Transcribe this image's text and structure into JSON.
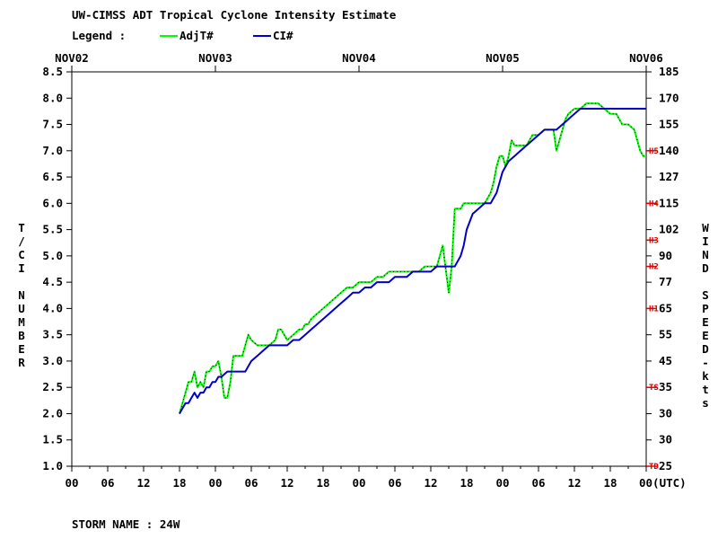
{
  "chart_data": {
    "type": "line",
    "title": "UW-CIMSS ADT Tropical Cyclone Intensity Estimate",
    "legend_label": "Legend :",
    "legend_placement": "top-left",
    "footer": "STORM NAME : 24W",
    "xlabel_suffix": "00(UTC)",
    "ylabel_left": "T/CI NUMBER",
    "ylabel_right": "WIND SPEED-kts",
    "x_unit": "hours since NOV02 00 UTC",
    "xlim": [
      0,
      96
    ],
    "ylim": [
      1.0,
      8.5
    ],
    "grid": false,
    "date_labels": [
      {
        "x": 0,
        "label": "NOV02"
      },
      {
        "x": 24,
        "label": "NOV03"
      },
      {
        "x": 48,
        "label": "NOV04"
      },
      {
        "x": 72,
        "label": "NOV05"
      },
      {
        "x": 96,
        "label": "NOV06"
      }
    ],
    "x_ticks": [
      {
        "x": 0,
        "label": "00"
      },
      {
        "x": 6,
        "label": "06"
      },
      {
        "x": 12,
        "label": "12"
      },
      {
        "x": 18,
        "label": "18"
      },
      {
        "x": 24,
        "label": "00"
      },
      {
        "x": 30,
        "label": "06"
      },
      {
        "x": 36,
        "label": "12"
      },
      {
        "x": 42,
        "label": "18"
      },
      {
        "x": 48,
        "label": "00"
      },
      {
        "x": 54,
        "label": "06"
      },
      {
        "x": 60,
        "label": "12"
      },
      {
        "x": 66,
        "label": "18"
      },
      {
        "x": 72,
        "label": "00"
      },
      {
        "x": 78,
        "label": "06"
      },
      {
        "x": 84,
        "label": "12"
      },
      {
        "x": 90,
        "label": "18"
      }
    ],
    "y_ticks_left": [
      "1.0",
      "1.5",
      "2.0",
      "2.5",
      "3.0",
      "3.5",
      "4.0",
      "4.5",
      "5.0",
      "5.5",
      "6.0",
      "6.5",
      "7.0",
      "7.5",
      "8.0",
      "8.5"
    ],
    "y_ticks_right": [
      {
        "t": 1.0,
        "label": "25"
      },
      {
        "t": 1.5,
        "label": "30"
      },
      {
        "t": 2.0,
        "label": "30"
      },
      {
        "t": 2.5,
        "label": "35"
      },
      {
        "t": 3.0,
        "label": "45"
      },
      {
        "t": 3.5,
        "label": "55"
      },
      {
        "t": 4.0,
        "label": "65"
      },
      {
        "t": 4.5,
        "label": "77"
      },
      {
        "t": 5.0,
        "label": "90"
      },
      {
        "t": 5.5,
        "label": "102"
      },
      {
        "t": 6.0,
        "label": "115"
      },
      {
        "t": 6.5,
        "label": "127"
      },
      {
        "t": 7.0,
        "label": "140"
      },
      {
        "t": 7.5,
        "label": "155"
      },
      {
        "t": 8.0,
        "label": "170"
      },
      {
        "t": 8.5,
        "label": "185"
      }
    ],
    "category_marks": [
      {
        "t": 1.0,
        "label": "TD"
      },
      {
        "t": 2.5,
        "label": "TS"
      },
      {
        "t": 4.0,
        "label": "H1"
      },
      {
        "t": 4.8,
        "label": "H2"
      },
      {
        "t": 5.3,
        "label": "H3"
      },
      {
        "t": 6.0,
        "label": "H4"
      },
      {
        "t": 7.0,
        "label": "H5"
      }
    ],
    "series": [
      {
        "name": "AdjT#",
        "color": "#00ff00",
        "x": [
          18,
          18.5,
          19,
          19.5,
          20,
          20.5,
          21,
          21.5,
          22,
          22.5,
          23,
          23.5,
          24,
          24.5,
          25,
          25.5,
          26,
          26.5,
          27,
          27.5,
          28,
          28.5,
          29,
          29.5,
          30,
          31,
          32,
          33,
          34,
          34.5,
          35,
          35.5,
          36,
          37,
          38,
          38.5,
          39,
          39.5,
          40,
          41,
          42,
          43,
          44,
          45,
          46,
          47,
          48,
          49,
          50,
          51,
          52,
          53,
          54,
          55,
          56,
          57,
          58,
          59,
          60,
          61,
          62,
          63,
          63.5,
          64,
          64.5,
          65,
          65.5,
          66,
          67,
          68,
          69,
          70,
          70.5,
          71,
          71.5,
          72,
          72.5,
          73,
          73.5,
          74,
          75,
          76,
          77,
          78,
          79,
          79.5,
          80,
          80.5,
          81,
          82,
          82.5,
          83,
          84,
          85,
          86,
          87,
          88,
          89,
          90,
          91,
          92,
          93,
          94,
          95,
          95.5,
          96
        ],
        "y": [
          2.0,
          2.2,
          2.4,
          2.6,
          2.6,
          2.8,
          2.5,
          2.6,
          2.5,
          2.8,
          2.8,
          2.9,
          2.9,
          3.0,
          2.7,
          2.3,
          2.3,
          2.6,
          3.1,
          3.1,
          3.1,
          3.1,
          3.3,
          3.5,
          3.4,
          3.3,
          3.3,
          3.3,
          3.4,
          3.6,
          3.6,
          3.5,
          3.4,
          3.5,
          3.6,
          3.6,
          3.7,
          3.7,
          3.8,
          3.9,
          4.0,
          4.1,
          4.2,
          4.3,
          4.4,
          4.4,
          4.5,
          4.5,
          4.5,
          4.6,
          4.6,
          4.7,
          4.7,
          4.7,
          4.7,
          4.7,
          4.7,
          4.8,
          4.8,
          4.8,
          5.2,
          4.3,
          4.8,
          5.9,
          5.9,
          5.9,
          6.0,
          6.0,
          6.0,
          6.0,
          6.0,
          6.2,
          6.4,
          6.7,
          6.9,
          6.9,
          6.7,
          6.9,
          7.2,
          7.1,
          7.1,
          7.1,
          7.3,
          7.3,
          7.4,
          7.4,
          7.4,
          7.4,
          7.0,
          7.4,
          7.6,
          7.7,
          7.8,
          7.8,
          7.9,
          7.9,
          7.9,
          7.8,
          7.7,
          7.7,
          7.5,
          7.5,
          7.4,
          7.0,
          6.9,
          6.9
        ]
      },
      {
        "name": "CI#",
        "color": "#0000cc",
        "x": [
          18,
          18.5,
          19,
          19.5,
          20,
          20.5,
          21,
          21.5,
          22,
          22.5,
          23,
          23.5,
          24,
          24.5,
          25,
          26,
          27,
          28,
          29,
          30,
          31,
          32,
          33,
          34,
          35,
          36,
          37,
          38,
          39,
          40,
          41,
          42,
          43,
          44,
          45,
          46,
          47,
          48,
          49,
          50,
          51,
          52,
          53,
          54,
          55,
          56,
          57,
          58,
          59,
          60,
          61,
          62,
          63,
          64,
          64.5,
          65,
          65.5,
          66,
          67,
          68,
          69,
          70,
          71,
          72,
          73,
          74,
          75,
          76,
          77,
          78,
          79,
          80,
          81,
          82,
          83,
          84,
          85,
          86,
          87,
          88,
          89,
          90,
          91,
          92,
          93,
          94,
          95,
          96
        ],
        "y": [
          2.0,
          2.1,
          2.2,
          2.2,
          2.3,
          2.4,
          2.3,
          2.4,
          2.4,
          2.5,
          2.5,
          2.6,
          2.6,
          2.7,
          2.7,
          2.8,
          2.8,
          2.8,
          2.8,
          3.0,
          3.1,
          3.2,
          3.3,
          3.3,
          3.3,
          3.3,
          3.4,
          3.4,
          3.5,
          3.6,
          3.7,
          3.8,
          3.9,
          4.0,
          4.1,
          4.2,
          4.3,
          4.3,
          4.4,
          4.4,
          4.5,
          4.5,
          4.5,
          4.6,
          4.6,
          4.6,
          4.7,
          4.7,
          4.7,
          4.7,
          4.8,
          4.8,
          4.8,
          4.8,
          4.9,
          5.0,
          5.2,
          5.5,
          5.8,
          5.9,
          6.0,
          6.0,
          6.2,
          6.6,
          6.8,
          6.9,
          7.0,
          7.1,
          7.2,
          7.3,
          7.4,
          7.4,
          7.4,
          7.5,
          7.6,
          7.7,
          7.8,
          7.8,
          7.8,
          7.8,
          7.8,
          7.8,
          7.8,
          7.8,
          7.8,
          7.8,
          7.8,
          7.8
        ]
      }
    ]
  }
}
